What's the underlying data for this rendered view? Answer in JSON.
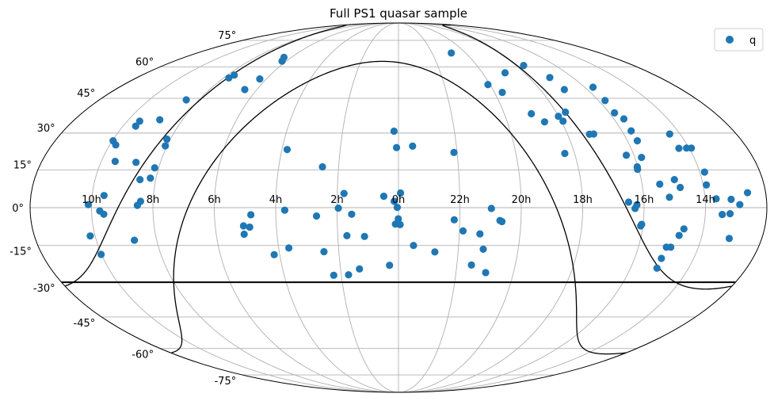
{
  "chart_data": {
    "type": "scatter",
    "projection": "mollweide",
    "title": "Full PS1 quasar sample",
    "xlabel": "",
    "ylabel": "",
    "grid": true,
    "legend_position": "top-right",
    "series": [
      {
        "name": "q",
        "color": "#1f77b4",
        "points": [
          {
            "ra": 152.4,
            "dec": -11.2
          },
          {
            "ra": 151.6,
            "dec": 1.2
          },
          {
            "ra": 150.2,
            "dec": -18.6
          },
          {
            "ra": 149.6,
            "dec": 26.8
          },
          {
            "ra": 146.9,
            "dec": 25.1
          },
          {
            "ra": 146.0,
            "dec": -1.3
          },
          {
            "ra": 144.2,
            "dec": 4.8
          },
          {
            "ra": 144.1,
            "dec": -2.6
          },
          {
            "ra": 143.0,
            "dec": 18.4
          },
          {
            "ra": 143.1,
            "dec": 32.9
          },
          {
            "ra": 143.1,
            "dec": 35.0
          },
          {
            "ra": 132.3,
            "dec": 18.0
          },
          {
            "ra": 132.6,
            "dec": 35.6
          },
          {
            "ra": 131.1,
            "dec": -12.9
          },
          {
            "ra": 127.8,
            "dec": 11.1
          },
          {
            "ra": 127.6,
            "dec": 0.9
          },
          {
            "ra": 126.1,
            "dec": 2.5
          },
          {
            "ra": 127.7,
            "dec": 44.3
          },
          {
            "ra": 121.9,
            "dec": 27.5
          },
          {
            "ra": 120.9,
            "dec": 24.7
          },
          {
            "ra": 122.0,
            "dec": 15.8
          },
          {
            "ra": 122.8,
            "dec": 11.7
          },
          {
            "ra": 116.5,
            "dec": 54.5
          },
          {
            "ra": 115.3,
            "dec": 55.9
          },
          {
            "ra": 97.7,
            "dec": 49.0
          },
          {
            "ra": 94.5,
            "dec": 54.0
          },
          {
            "ra": 96.3,
            "dec": 65.0
          },
          {
            "ra": 93.5,
            "dec": 63.0
          },
          {
            "ra": 76.1,
            "dec": -7.2
          },
          {
            "ra": 76.2,
            "dec": -10.5
          },
          {
            "ra": 73.1,
            "dec": -7.7
          },
          {
            "ra": 72.2,
            "dec": -2.8
          },
          {
            "ra": 62.8,
            "dec": -18.7
          },
          {
            "ra": 57.3,
            "dec": 23.2
          },
          {
            "ra": 55.6,
            "dec": -1.0
          },
          {
            "ra": 54.9,
            "dec": -16.0
          },
          {
            "ra": 40.1,
            "dec": -3.3
          },
          {
            "ra": 38.1,
            "dec": 16.2
          },
          {
            "ra": 37.5,
            "dec": -17.5
          },
          {
            "ra": 34.0,
            "dec": -27.1
          },
          {
            "ra": 29.4,
            "dec": -0.2
          },
          {
            "ra": 26.2,
            "dec": -26.9
          },
          {
            "ra": 26.7,
            "dec": 5.6
          },
          {
            "ra": 25.5,
            "dec": -11.1
          },
          {
            "ra": 22.9,
            "dec": -2.6
          },
          {
            "ra": 20.2,
            "dec": -24.5
          },
          {
            "ra": 16.8,
            "dec": -11.4
          },
          {
            "ra": 7.2,
            "dec": 4.5
          },
          {
            "ra": 4.6,
            "dec": -23.0
          },
          {
            "ra": 2.4,
            "dec": 30.8
          },
          {
            "ra": 2.1,
            "dec": 2.5
          },
          {
            "ra": 1.5,
            "dec": -6.5
          },
          {
            "ra": 1.0,
            "dec": 24.0
          },
          {
            "ra": 0.6,
            "dec": 0.1
          },
          {
            "ra": 0.1,
            "dec": -4.4
          },
          {
            "ra": 359.0,
            "dec": 5.8
          },
          {
            "ra": 359.2,
            "dec": -6.7
          },
          {
            "ra": 352.7,
            "dec": 24.6
          },
          {
            "ra": 352.5,
            "dec": -15.0
          },
          {
            "ra": 341.7,
            "dec": -17.6
          },
          {
            "ra": 331.6,
            "dec": 22.0
          },
          {
            "ra": 332.7,
            "dec": -4.8
          },
          {
            "ra": 328.2,
            "dec": -9.2
          },
          {
            "ra": 322.5,
            "dec": -22.9
          },
          {
            "ra": 319.8,
            "dec": -10.4
          },
          {
            "ra": 317.5,
            "dec": -16.5
          },
          {
            "ra": 314.6,
            "dec": -0.3
          },
          {
            "ra": 314.5,
            "dec": -26.0
          },
          {
            "ra": 310.3,
            "dec": -5.1
          },
          {
            "ra": 309.3,
            "dec": -5.5
          },
          {
            "ra": 312.8,
            "dec": 67.4
          },
          {
            "ra": 301.4,
            "dec": 51.3
          },
          {
            "ra": 295.1,
            "dec": 47.7
          },
          {
            "ra": 283.8,
            "dec": 57.0
          },
          {
            "ra": 284.6,
            "dec": 38.2
          },
          {
            "ra": 279.4,
            "dec": 34.7
          },
          {
            "ra": 275.0,
            "dec": 21.6
          },
          {
            "ra": 269.0,
            "dec": 35.0
          },
          {
            "ra": 270.1,
            "dec": 37.1
          },
          {
            "ra": 264.7,
            "dec": 38.9
          },
          {
            "ra": 264.2,
            "dec": 60.7
          },
          {
            "ra": 255.8,
            "dec": 54.7
          },
          {
            "ra": 258.3,
            "dec": 29.5
          },
          {
            "ra": 256.0,
            "dec": 29.6
          },
          {
            "ra": 254.6,
            "dec": 49.0
          },
          {
            "ra": 247.5,
            "dec": 2.2
          },
          {
            "ra": 243.9,
            "dec": 20.9
          },
          {
            "ra": 244.4,
            "dec": -0.3
          },
          {
            "ra": 243.5,
            "dec": 1.1
          },
          {
            "ra": 240.4,
            "dec": 16.2
          },
          {
            "ra": 240.6,
            "dec": 15.2
          },
          {
            "ra": 240.7,
            "dec": -6.6
          },
          {
            "ra": 241.1,
            "dec": -7.2
          },
          {
            "ra": 236.6,
            "dec": 20.0
          },
          {
            "ra": 237.0,
            "dec": 38.6
          },
          {
            "ra": 235.0,
            "dec": 30.9
          },
          {
            "ra": 234.8,
            "dec": 26.8
          },
          {
            "ra": 236.1,
            "dec": 44.0
          },
          {
            "ra": 234.4,
            "dec": 36.0
          },
          {
            "ra": 234.6,
            "dec": 50.1
          },
          {
            "ra": 231.3,
            "dec": 9.3
          },
          {
            "ra": 227.4,
            "dec": 4.1
          },
          {
            "ra": 226.4,
            "dec": -20.2
          },
          {
            "ra": 226.3,
            "dec": -24.2
          },
          {
            "ra": 226.0,
            "dec": -15.7
          },
          {
            "ra": 223.8,
            "dec": -15.7
          },
          {
            "ra": 223.6,
            "dec": 11.1
          },
          {
            "ra": 221.5,
            "dec": 8.0
          },
          {
            "ra": 221.3,
            "dec": -11.0
          },
          {
            "ra": 219.6,
            "dec": -8.4
          },
          {
            "ra": 215.5,
            "dec": 29.6
          },
          {
            "ra": 215.3,
            "dec": 23.7
          },
          {
            "ra": 211.3,
            "dec": 23.8
          },
          {
            "ra": 208.8,
            "dec": 23.8
          },
          {
            "ra": 207.6,
            "dec": 14.1
          },
          {
            "ra": 208.4,
            "dec": 9.0
          },
          {
            "ra": 204.6,
            "dec": 3.5
          },
          {
            "ra": 201.7,
            "dec": -2.7
          },
          {
            "ra": 197.3,
            "dec": 3.3
          },
          {
            "ra": 197.9,
            "dec": -2.4
          },
          {
            "ra": 196.1,
            "dec": -12.2
          },
          {
            "ra": 193.2,
            "dec": 1.2
          },
          {
            "ra": 188.9,
            "dec": 5.9
          }
        ]
      }
    ],
    "boundaries": [
      {
        "type": "dec_cut",
        "dec": -30
      },
      {
        "type": "galactic_latitude",
        "b": 0
      },
      {
        "type": "galactic_latitude",
        "b": 30
      }
    ],
    "xticks": [
      "14h",
      "16h",
      "18h",
      "20h",
      "22h",
      "0h",
      "2h",
      "4h",
      "6h",
      "8h",
      "10h"
    ],
    "yticks": [
      "-75°",
      "-60°",
      "-45°",
      "-30°",
      "-15°",
      "0°",
      "15°",
      "30°",
      "45°",
      "60°",
      "75°"
    ],
    "xtick_ra": [
      210,
      240,
      270,
      300,
      330,
      0,
      30,
      60,
      90,
      120,
      150
    ],
    "ytick_dec": [
      -75,
      -60,
      -45,
      -30,
      -15,
      0,
      15,
      30,
      45,
      60,
      75
    ]
  }
}
